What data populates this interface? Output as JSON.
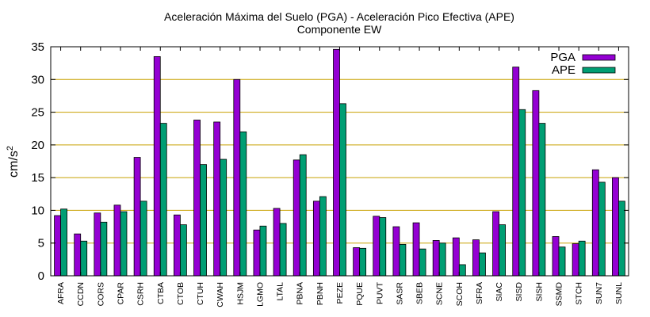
{
  "chart_data": {
    "type": "bar",
    "title": "Aceleración Máxima del Suelo (PGA) -  Aceleración Pico Efectiva (APE)",
    "subtitle": "Componente EW",
    "ylabel": "cm/s",
    "ylabel_sup": "2",
    "ylim": [
      0,
      35
    ],
    "yticks": [
      0,
      5,
      10,
      15,
      20,
      25,
      30,
      35
    ],
    "grid": true,
    "legend_position": "top-right",
    "categories": [
      "AFRA",
      "CCDN",
      "CORS",
      "CPAR",
      "CSRH",
      "CTBA",
      "CTOB",
      "CTUH",
      "CWAH",
      "HSJM",
      "LGMO",
      "LTAL",
      "PBNA",
      "PBNH",
      "PEZE",
      "PQUE",
      "PUVT",
      "SASR",
      "SBEB",
      "SCNE",
      "SCOH",
      "SFRA",
      "SIAC",
      "SISD",
      "SISH",
      "SSMD",
      "STCH",
      "SUN7",
      "SUNL"
    ],
    "series": [
      {
        "name": "PGA",
        "color": "#9400d3",
        "values": [
          9.2,
          6.4,
          9.6,
          10.8,
          18.1,
          33.5,
          9.3,
          23.8,
          23.5,
          30.0,
          7.0,
          10.3,
          17.7,
          11.4,
          34.6,
          4.3,
          9.1,
          7.5,
          8.1,
          5.4,
          5.8,
          5.5,
          9.8,
          31.9,
          28.3,
          6.0,
          4.9,
          16.2,
          15.0
        ]
      },
      {
        "name": "APE",
        "color": "#009e73",
        "values": [
          10.2,
          5.3,
          8.2,
          9.8,
          11.4,
          23.3,
          7.8,
          17.0,
          17.8,
          22.0,
          7.6,
          8.0,
          18.5,
          12.1,
          26.3,
          4.2,
          8.9,
          4.8,
          4.1,
          5.0,
          1.7,
          3.5,
          7.8,
          25.4,
          23.3,
          4.4,
          5.3,
          14.3,
          11.4
        ]
      }
    ],
    "grid_color": "#c8a000",
    "bar_border_color": "#000000"
  }
}
